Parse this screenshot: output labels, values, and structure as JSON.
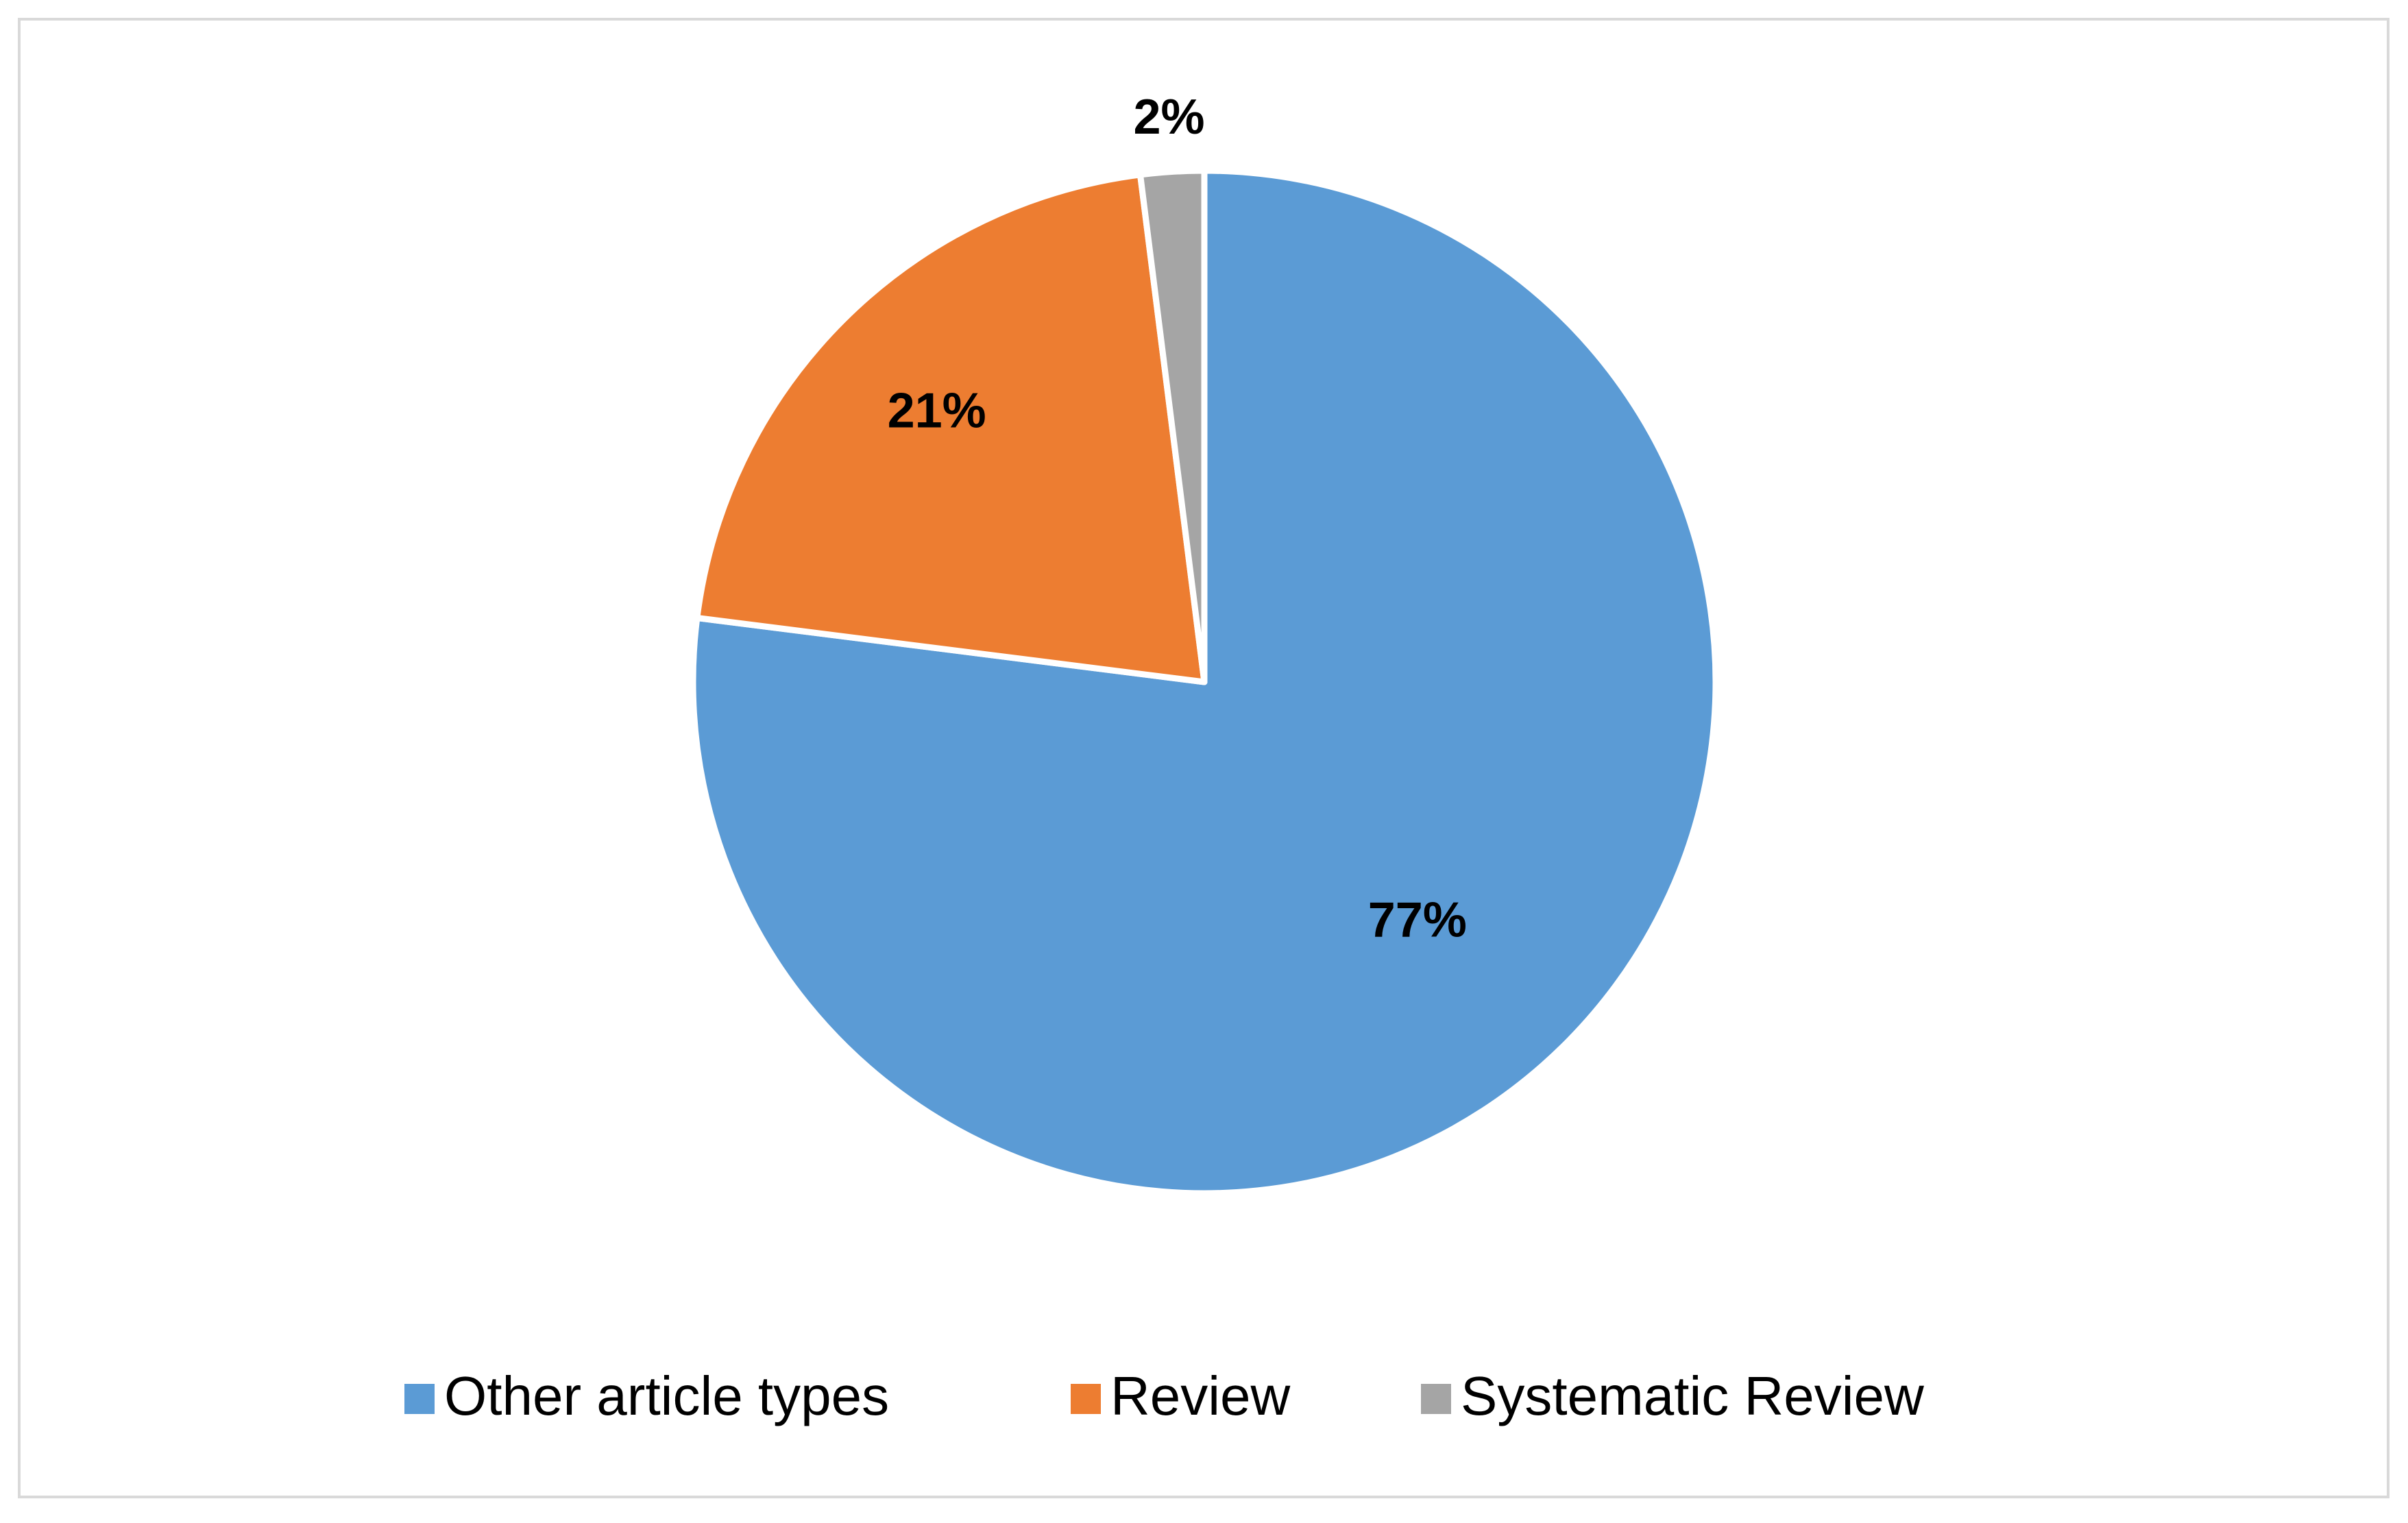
{
  "chart_data": {
    "type": "pie",
    "categories": [
      "Other article types",
      "Review",
      "Systematic Review"
    ],
    "values": [
      77,
      21,
      2
    ],
    "value_labels": [
      "77%",
      "21%",
      "2%"
    ],
    "colors": [
      "#5b9bd5",
      "#ed7d31",
      "#a5a5a5"
    ],
    "legend": "bottom"
  }
}
